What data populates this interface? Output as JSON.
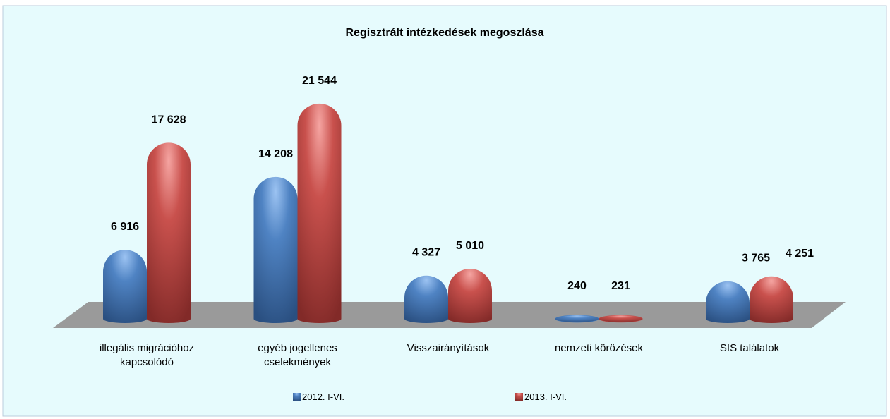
{
  "chart_data": {
    "type": "bar3d",
    "title": "Regisztrált intézkedések megoszlása",
    "categories": [
      "illegális migrációhoz kapcsolódó",
      "egyéb jogellenes cselekmények",
      "Visszairányítások",
      "nemzeti körözések",
      "SIS találatok"
    ],
    "series": [
      {
        "name": "2012. I-VI.",
        "color": "#4a7ebb",
        "values": [
          6916,
          14208,
          4327,
          240,
          3765
        ],
        "value_labels": [
          "6 916",
          "14 208",
          "4 327",
          "240",
          "3 765"
        ]
      },
      {
        "name": "2013. I-VI.",
        "color": "#c0504d",
        "values": [
          17628,
          21544,
          5010,
          231,
          4251
        ],
        "value_labels": [
          "17 628",
          "21 544",
          "5 010",
          "231",
          "4 251"
        ]
      }
    ]
  }
}
